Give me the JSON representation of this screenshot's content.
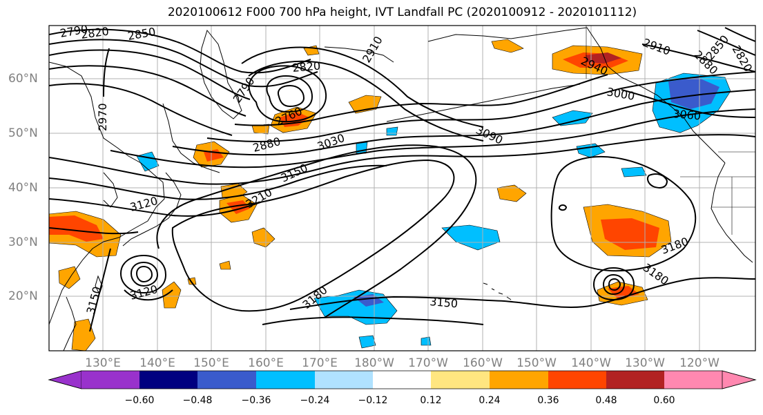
{
  "title": "2020100612 F000 700 hPa height, IVT Landfall PC (2020100912 - 2020101112)",
  "latitude_labels": [
    "60°N",
    "50°N",
    "40°N",
    "30°N",
    "20°N"
  ],
  "longitude_labels": [
    "130°E",
    "140°E",
    "150°E",
    "160°E",
    "170°E",
    "180°W",
    "170°W",
    "160°W",
    "150°W",
    "140°W",
    "130°W",
    "120°W"
  ],
  "colorbar": {
    "ticks": [
      "−0.60",
      "−0.48",
      "−0.36",
      "−0.24",
      "−0.12",
      "0.12",
      "0.24",
      "0.36",
      "0.48",
      "0.60"
    ],
    "colors": [
      "#9932cc",
      "#000080",
      "#3a5bcc",
      "#00bfff",
      "#b0e2ff",
      "#ffffff",
      "#ffe680",
      "#ffa500",
      "#ff4500",
      "#b22222",
      "#ff88b0"
    ]
  },
  "contour_labels": [
    "2790",
    "2820",
    "2850",
    "2970",
    "2790",
    "2820",
    "2910",
    "2760",
    "2880",
    "3030",
    "3090",
    "2940",
    "2910",
    "2880",
    "2850",
    "2820",
    "3000",
    "3060",
    "3150",
    "3210",
    "3120",
    "3120",
    "3150",
    "3180",
    "3150",
    "3180",
    "3180"
  ]
}
